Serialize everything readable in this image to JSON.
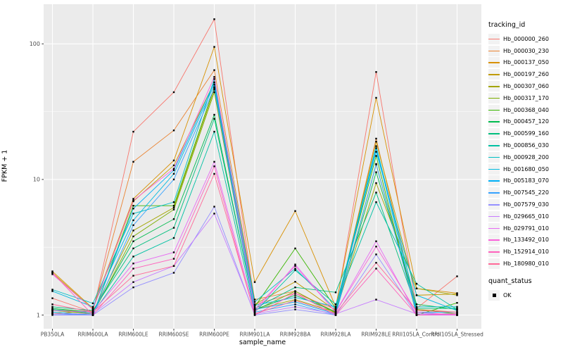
{
  "chart_data": {
    "type": "line",
    "xlabel": "sample_name",
    "ylabel": "FPKM + 1",
    "yscale": "log10",
    "yticks": [
      1,
      10,
      100
    ],
    "ylim": [
      0.79,
      196
    ],
    "grid": "on",
    "panel_bg": "#EBEBEB",
    "grid_color": "#FFFFFF",
    "axis_text_color": "#4D4D4D",
    "point_color": "#000000",
    "legend": {
      "color_title": "tracking_id",
      "shape_title": "quant_status",
      "shape_items": [
        {
          "label": "OK",
          "shape": "square",
          "color": "#000000"
        }
      ]
    },
    "categories": [
      "PB350LA",
      "RRIM600LA",
      "RRIM600LE",
      "RRIM600SE",
      "RRIM600PE",
      "RRIM901LA",
      "RRIM928BA",
      "RRIM928LA",
      "RRIM928LE",
      "RRII105LA_Control",
      "RRII105LA_Stressed"
    ],
    "series": [
      {
        "name": "Hb_000000_260",
        "color": "#F8766D",
        "values": [
          1.33,
          1.05,
          22.5,
          44,
          152,
          1.2,
          1.45,
          1.1,
          62,
          1.12,
          1.93
        ]
      },
      {
        "name": "Hb_000030_230",
        "color": "#EA8331",
        "values": [
          1.02,
          1.08,
          13.5,
          23,
          64,
          1.3,
          1.5,
          1.05,
          20,
          1.1,
          1.05
        ]
      },
      {
        "name": "Hb_000137_050",
        "color": "#D89000",
        "values": [
          2.1,
          1.12,
          7.2,
          13.8,
          95,
          1.75,
          5.85,
          1.15,
          40,
          1.57,
          1.45
        ]
      },
      {
        "name": "Hb_000197_260",
        "color": "#C09B00",
        "values": [
          2.05,
          1.1,
          6.9,
          12.7,
          52,
          1.2,
          1.76,
          1.08,
          19,
          1.4,
          1.43
        ]
      },
      {
        "name": "Hb_000307_060",
        "color": "#A3A500",
        "values": [
          1.1,
          1.05,
          4.2,
          6.2,
          46,
          1.1,
          1.3,
          1.05,
          9.4,
          1.57,
          1.4
        ]
      },
      {
        "name": "Hb_000317_170",
        "color": "#7CAE00",
        "values": [
          1.08,
          1.02,
          3.8,
          6.0,
          44,
          1.08,
          1.5,
          1.03,
          12.9,
          1.1,
          1.02
        ]
      },
      {
        "name": "Hb_000368_040",
        "color": "#39B600",
        "values": [
          1.05,
          1.0,
          6.4,
          6.4,
          48,
          1.15,
          3.1,
          1.12,
          14.9,
          1.0,
          1.23
        ]
      },
      {
        "name": "Hb_000457_120",
        "color": "#00BB4E",
        "values": [
          1.12,
          1.05,
          3.5,
          5.1,
          30,
          1.1,
          1.4,
          1.06,
          11.3,
          1.2,
          1.1
        ]
      },
      {
        "name": "Hb_000599_160",
        "color": "#00BF7D",
        "values": [
          1.15,
          1.08,
          3.1,
          4.4,
          28,
          1.12,
          1.6,
          1.47,
          8.0,
          1.12,
          1.12
        ]
      },
      {
        "name": "Hb_000856_030",
        "color": "#00C1A3",
        "values": [
          1.1,
          1.03,
          2.7,
          3.7,
          22.5,
          1.05,
          2.14,
          1.2,
          6.8,
          1.7,
          1.1
        ]
      },
      {
        "name": "Hb_000928_200",
        "color": "#00BFC4",
        "values": [
          1.54,
          1.22,
          5.6,
          6.8,
          55,
          1.25,
          2.2,
          1.1,
          17.6,
          1.15,
          1.15
        ]
      },
      {
        "name": "Hb_001680_050",
        "color": "#00BAE0",
        "values": [
          1.5,
          1.15,
          5.0,
          11.0,
          50,
          1.18,
          1.35,
          1.15,
          16,
          1.4,
          1.08
        ]
      },
      {
        "name": "Hb_005183_070",
        "color": "#00B0F6",
        "values": [
          1.05,
          1.0,
          6.1,
          11.7,
          52,
          1.1,
          1.25,
          1.02,
          17,
          1.05,
          1.05
        ]
      },
      {
        "name": "Hb_007545_220",
        "color": "#35A2FF",
        "values": [
          1.02,
          1.0,
          4.6,
          10.0,
          47,
          1.05,
          1.2,
          1.0,
          13,
          1.02,
          1.02
        ]
      },
      {
        "name": "Hb_007579_030",
        "color": "#9590FF",
        "values": [
          1.0,
          1.0,
          1.6,
          2.05,
          6.3,
          1.0,
          1.1,
          1.0,
          2.8,
          1.0,
          1.0
        ]
      },
      {
        "name": "Hb_029665_010",
        "color": "#C77CFF",
        "values": [
          1.02,
          1.02,
          1.75,
          2.3,
          5.6,
          1.02,
          1.15,
          1.02,
          1.3,
          1.02,
          1.0
        ]
      },
      {
        "name": "Hb_029791_010",
        "color": "#E76BF3",
        "values": [
          1.08,
          1.05,
          2.4,
          2.9,
          13.5,
          1.05,
          2.36,
          1.05,
          3.5,
          1.0,
          1.0
        ]
      },
      {
        "name": "Hb_133492_010",
        "color": "#FA62DB",
        "values": [
          2.0,
          1.1,
          7.0,
          12.0,
          57,
          1.1,
          2.3,
          1.05,
          3.2,
          1.05,
          1.0
        ]
      },
      {
        "name": "Hb_152914_010",
        "color": "#FF62BC",
        "values": [
          2.05,
          1.0,
          2.2,
          2.6,
          12.5,
          1.0,
          1.45,
          1.0,
          2.2,
          1.0,
          1.02
        ]
      },
      {
        "name": "Hb_180980_010",
        "color": "#FF6A98",
        "values": [
          1.2,
          1.05,
          1.95,
          2.3,
          11,
          1.02,
          1.28,
          1.03,
          2.43,
          1.08,
          1.05
        ]
      }
    ]
  }
}
